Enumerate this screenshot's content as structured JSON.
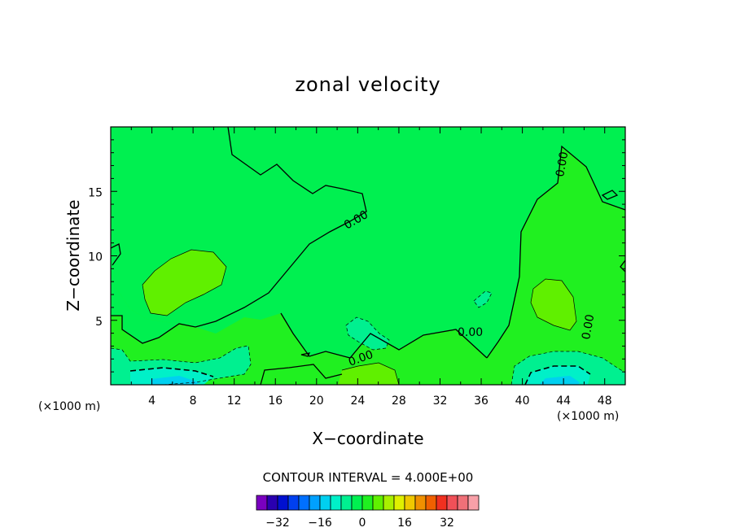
{
  "chart_data": {
    "type": "heatmap",
    "title": "zonal velocity",
    "xlabel": "X−coordinate",
    "ylabel": "Z−coordinate",
    "x_unit_left": "(×1000 m)",
    "x_unit_right": "(×1000 m)",
    "xlim": [
      0,
      50
    ],
    "ylim": [
      0,
      20
    ],
    "x_ticks": [
      4,
      8,
      12,
      16,
      20,
      24,
      28,
      32,
      36,
      40,
      44,
      48
    ],
    "y_ticks": [
      5,
      10,
      15
    ],
    "grid": false,
    "contour_label": "0.00",
    "contour_interval_text": "CONTOUR INTERVAL = 4.000E+00",
    "colorbar": {
      "levels": [
        -36,
        -32,
        -28,
        -24,
        -20,
        -16,
        -12,
        -8,
        -4,
        0,
        4,
        8,
        12,
        16,
        20,
        24,
        28,
        32,
        36
      ],
      "colors": [
        "#7a00c0",
        "#2a00b0",
        "#0010d0",
        "#0040f0",
        "#0070ff",
        "#00a0ff",
        "#00d0f0",
        "#00f0c8",
        "#00f090",
        "#00f050",
        "#20f020",
        "#60f000",
        "#a8f000",
        "#e0f000",
        "#f0c800",
        "#f09000",
        "#f06000",
        "#f03020",
        "#f05058",
        "#f07078",
        "#f8a0a8"
      ],
      "tick_values": [
        -32,
        -16,
        0,
        16,
        32
      ],
      "tick_labels": [
        "−32",
        "−16",
        "0",
        "16",
        "32"
      ]
    },
    "field_colors": {
      "zero_band": "#00f050",
      "slight_positive": "#20f020",
      "positive": "#60f000",
      "slight_negative": "#00f090",
      "negative": "#00f0c8",
      "strong_negative": "#00d0f0"
    }
  }
}
